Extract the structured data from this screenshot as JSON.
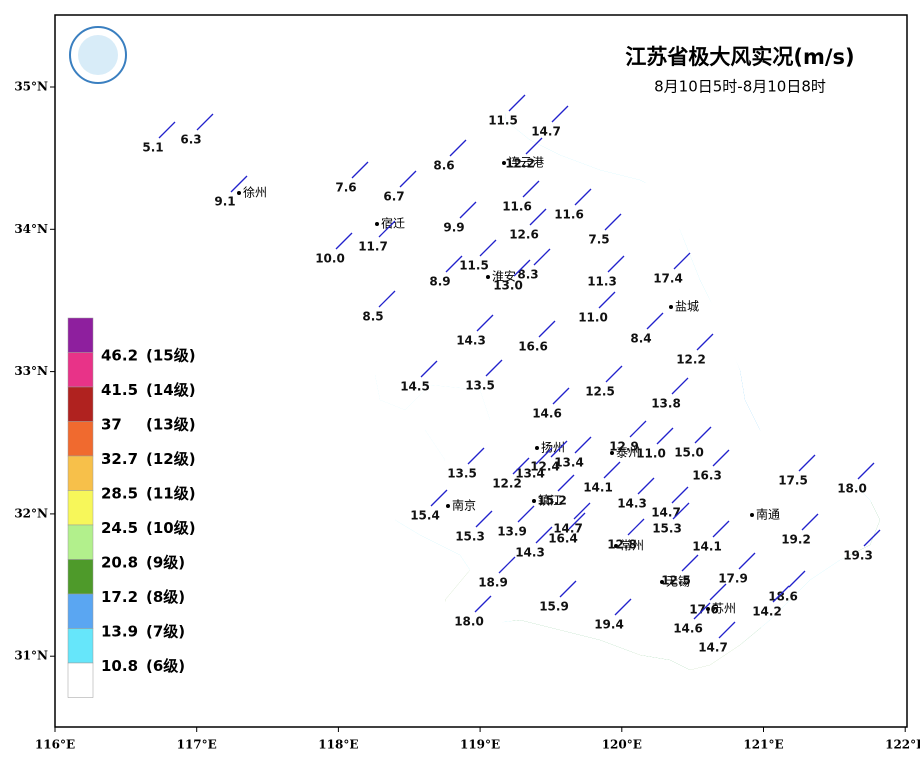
{
  "title": "江苏省极大风实况(m/s)",
  "subtitle": "8月10日5时-8月10日8时",
  "x_axis": [
    "116°E",
    "117°E",
    "118°E",
    "119°E",
    "120°E",
    "121°E",
    "122°E"
  ],
  "y_axis": [
    "35°N",
    "34°N",
    "33°N",
    "32°N",
    "31°N"
  ],
  "legend_colors": [
    "#8e1f9e",
    "#e83388",
    "#b0221f",
    "#f06a2f",
    "#f7c04a",
    "#f7f75a",
    "#b2f08c",
    "#4e9a2a",
    "#5aa6f2",
    "#66e6fa",
    "#ffffff"
  ],
  "legend": [
    {
      "value": "46.2",
      "level": "(15级)"
    },
    {
      "value": "41.5",
      "level": "(14级)"
    },
    {
      "value": "37",
      "level": "(13级)"
    },
    {
      "value": "32.7",
      "level": "(12级)"
    },
    {
      "value": "28.5",
      "level": "(11级)"
    },
    {
      "value": "24.5",
      "level": "(10级)"
    },
    {
      "value": "20.8",
      "level": "(9级)"
    },
    {
      "value": "17.2",
      "level": "(8级)"
    },
    {
      "value": "13.9",
      "level": "(7级)"
    },
    {
      "value": "10.8",
      "level": "(6级)"
    }
  ],
  "cities": [
    "徐州",
    "宿迁",
    "连云港",
    "淮安",
    "盐城",
    "扬州",
    "泰州",
    "南京",
    "镇江",
    "常州",
    "南通",
    "无锡",
    "苏州"
  ],
  "stations": [
    "5.1",
    "6.3",
    "9.1",
    "7.6",
    "6.7",
    "8.6",
    "11.5",
    "14.7",
    "12.2",
    "11.6",
    "11.6",
    "12.6",
    "9.9",
    "11.7",
    "10.0",
    "7.5",
    "11.5",
    "8.3",
    "8.9",
    "13.0",
    "11.3",
    "17.4",
    "8.5",
    "11.0",
    "14.3",
    "16.6",
    "8.4",
    "12.2",
    "14.5",
    "13.5",
    "12.5",
    "13.8",
    "14.6",
    "12.9",
    "11.0",
    "15.0",
    "13.5",
    "13.4",
    "13.4",
    "12.4",
    "12.2",
    "14.1",
    "16.3",
    "17.5",
    "18.0",
    "15.2",
    "14.3",
    "14.7",
    "15.4",
    "15.3",
    "13.9",
    "14.7",
    "16.4",
    "15.3",
    "12.8",
    "14.1",
    "19.2",
    "19.3",
    "14.3",
    "18.9",
    "17.9",
    "12.5",
    "18.6",
    "15.9",
    "17.6",
    "14.2",
    "18.0",
    "19.4",
    "14.6",
    "14.7"
  ]
}
